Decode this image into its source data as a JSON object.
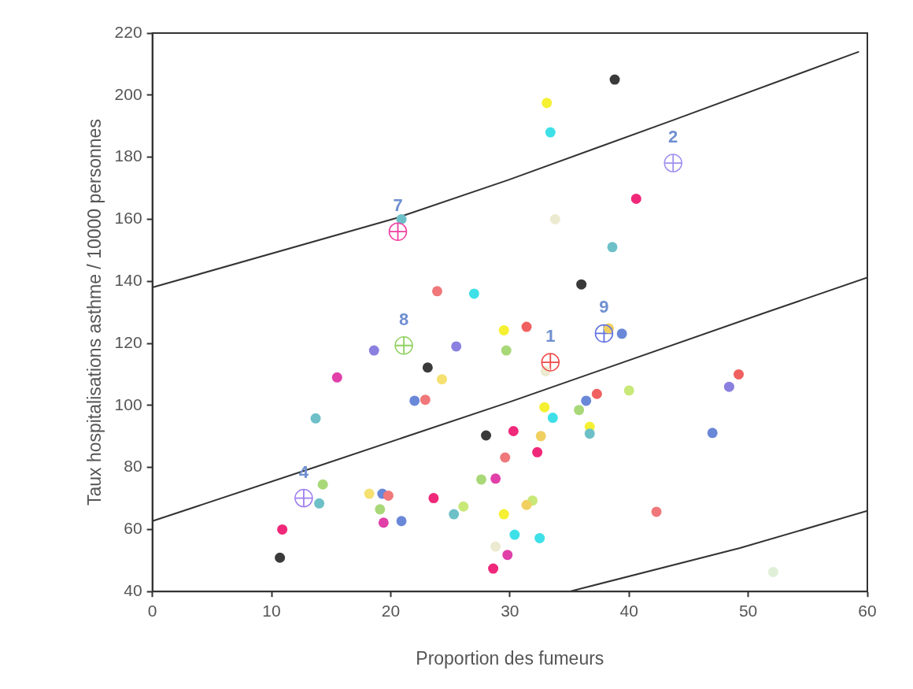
{
  "chart_data": {
    "type": "scatter",
    "xlabel": "Proportion des fumeurs",
    "ylabel": "Taux hospitalisations asthme / 10000 personnes",
    "xlim": [
      0,
      60
    ],
    "ylim": [
      40,
      220
    ],
    "xticks": [
      0,
      10,
      20,
      30,
      40,
      50,
      60
    ],
    "yticks": [
      40,
      60,
      80,
      100,
      120,
      140,
      160,
      180,
      200,
      220
    ],
    "grid": false,
    "legend": false,
    "series": [
      {
        "type": "scatter",
        "marker": "circle",
        "x": [
          38.8,
          33.1,
          33.4,
          40.6,
          33.8,
          38.6,
          36.0,
          23.9,
          27.0,
          20.9,
          31.4,
          29.5,
          38.3,
          39.4,
          25.5,
          18.6,
          29.7,
          23.1,
          15.5,
          24.3,
          33.0,
          37.3,
          36.4,
          40.0,
          48.4,
          49.2,
          22.0,
          22.9,
          13.7,
          32.9,
          33.6,
          35.8,
          28.0,
          30.3,
          36.7,
          36.7,
          32.6,
          47.0,
          32.3,
          29.6,
          27.6,
          28.8,
          14.3,
          14.0,
          18.2,
          19.3,
          19.8,
          19.1,
          19.4,
          20.9,
          23.6,
          25.3,
          26.1,
          29.5,
          31.9,
          31.4,
          30.4,
          32.5,
          28.8,
          29.8,
          28.6,
          10.9,
          10.7,
          42.3,
          52.1
        ],
        "values": [
          205,
          197.5,
          188,
          166.6,
          160,
          151,
          139,
          136.8,
          136,
          160,
          125.3,
          124.2,
          124.8,
          123.1,
          119,
          117.7,
          117.7,
          112.2,
          109,
          108.4,
          111,
          103.7,
          101.5,
          104.8,
          106,
          110,
          101.5,
          101.8,
          95.8,
          99.4,
          96,
          98.5,
          90.3,
          91.7,
          93.1,
          90.9,
          90.1,
          91.1,
          84.9,
          83.2,
          76.1,
          76.4,
          74.5,
          68.4,
          71.5,
          71.5,
          70.9,
          66.5,
          62.2,
          62.7,
          70.1,
          64.9,
          67.4,
          64.9,
          69.3,
          67.9,
          58.3,
          57.2,
          54.5,
          51.8,
          47.4,
          60,
          50.9,
          65.7,
          46.3
        ],
        "colors": [
          "#3a3a3a",
          "#f5f032",
          "#3ee0e8",
          "#f0287a",
          "#ecead0",
          "#6ec0c8",
          "#3a3a3a",
          "#f0787a",
          "#3ee0e8",
          "#6ec0c8",
          "#f06060",
          "#f5f032",
          "#f0d060",
          "#6a88d8",
          "#8a80e0",
          "#8a80e0",
          "#a8d878",
          "#3a3a3a",
          "#e040a8",
          "#f5e070",
          "#ecead0",
          "#f06060",
          "#6a88d8",
          "#c8e878",
          "#8a80e0",
          "#f06060",
          "#6a88d8",
          "#f0787a",
          "#6ec0c8",
          "#f5f032",
          "#3ee0e8",
          "#a8d878",
          "#3a3a3a",
          "#f0287a",
          "#f5f032",
          "#6ec0c8",
          "#f0d060",
          "#6a88d8",
          "#f0287a",
          "#f0787a",
          "#a8d878",
          "#e040a8",
          "#a8d878",
          "#6ec0c8",
          "#f5e070",
          "#6a88d8",
          "#f0787a",
          "#a8d878",
          "#e040a8",
          "#6a88d8",
          "#f0287a",
          "#6ec0c8",
          "#c8e878",
          "#f5f032",
          "#c8e878",
          "#f0d060",
          "#3ee0e8",
          "#3ee0e8",
          "#ecead0",
          "#e040a8",
          "#f0287a",
          "#f0287a",
          "#3a3a3a",
          "#f0787a",
          "#e0f0d8"
        ]
      },
      {
        "type": "scatter",
        "x": [
          33.4,
          43.7,
          12.7,
          20.6,
          21.1,
          37.9
        ],
        "values": [
          113.9,
          178.1,
          70.1,
          156,
          119.3,
          123.2
        ],
        "colors": [
          "#f04848",
          "#a090f0",
          "#a080f0",
          "#f040a0",
          "#90d060",
          "#6070e0"
        ]
      },
      {
        "type": "line",
        "marker": "none",
        "line_style": "solid",
        "color": "#333333",
        "x": [
          0,
          20.4,
          29.9,
          43.6,
          59.3
        ],
        "values": [
          138,
          160.3,
          172.7,
          191.8,
          214
        ]
      },
      {
        "type": "line",
        "marker": "none",
        "line_style": "solid",
        "color": "#333333",
        "x": [
          0,
          13.5,
          29.9,
          51.3,
          60
        ],
        "values": [
          62.7,
          79.9,
          101,
          129.7,
          141.2
        ]
      },
      {
        "type": "line",
        "marker": "none",
        "line_style": "solid",
        "color": "#333333",
        "x": [
          35,
          49.3,
          60
        ],
        "values": [
          40,
          54,
          66
        ]
      }
    ],
    "annotations": [
      {
        "text": "1",
        "x": 33.4,
        "y": 113.9
      },
      {
        "text": "2",
        "x": 43.7,
        "y": 178.1
      },
      {
        "text": "4",
        "x": 12.7,
        "y": 70.1
      },
      {
        "text": "7",
        "x": 20.6,
        "y": 156
      },
      {
        "text": "8",
        "x": 21.1,
        "y": 119.3
      },
      {
        "text": "9",
        "x": 37.9,
        "y": 123.2
      }
    ]
  }
}
